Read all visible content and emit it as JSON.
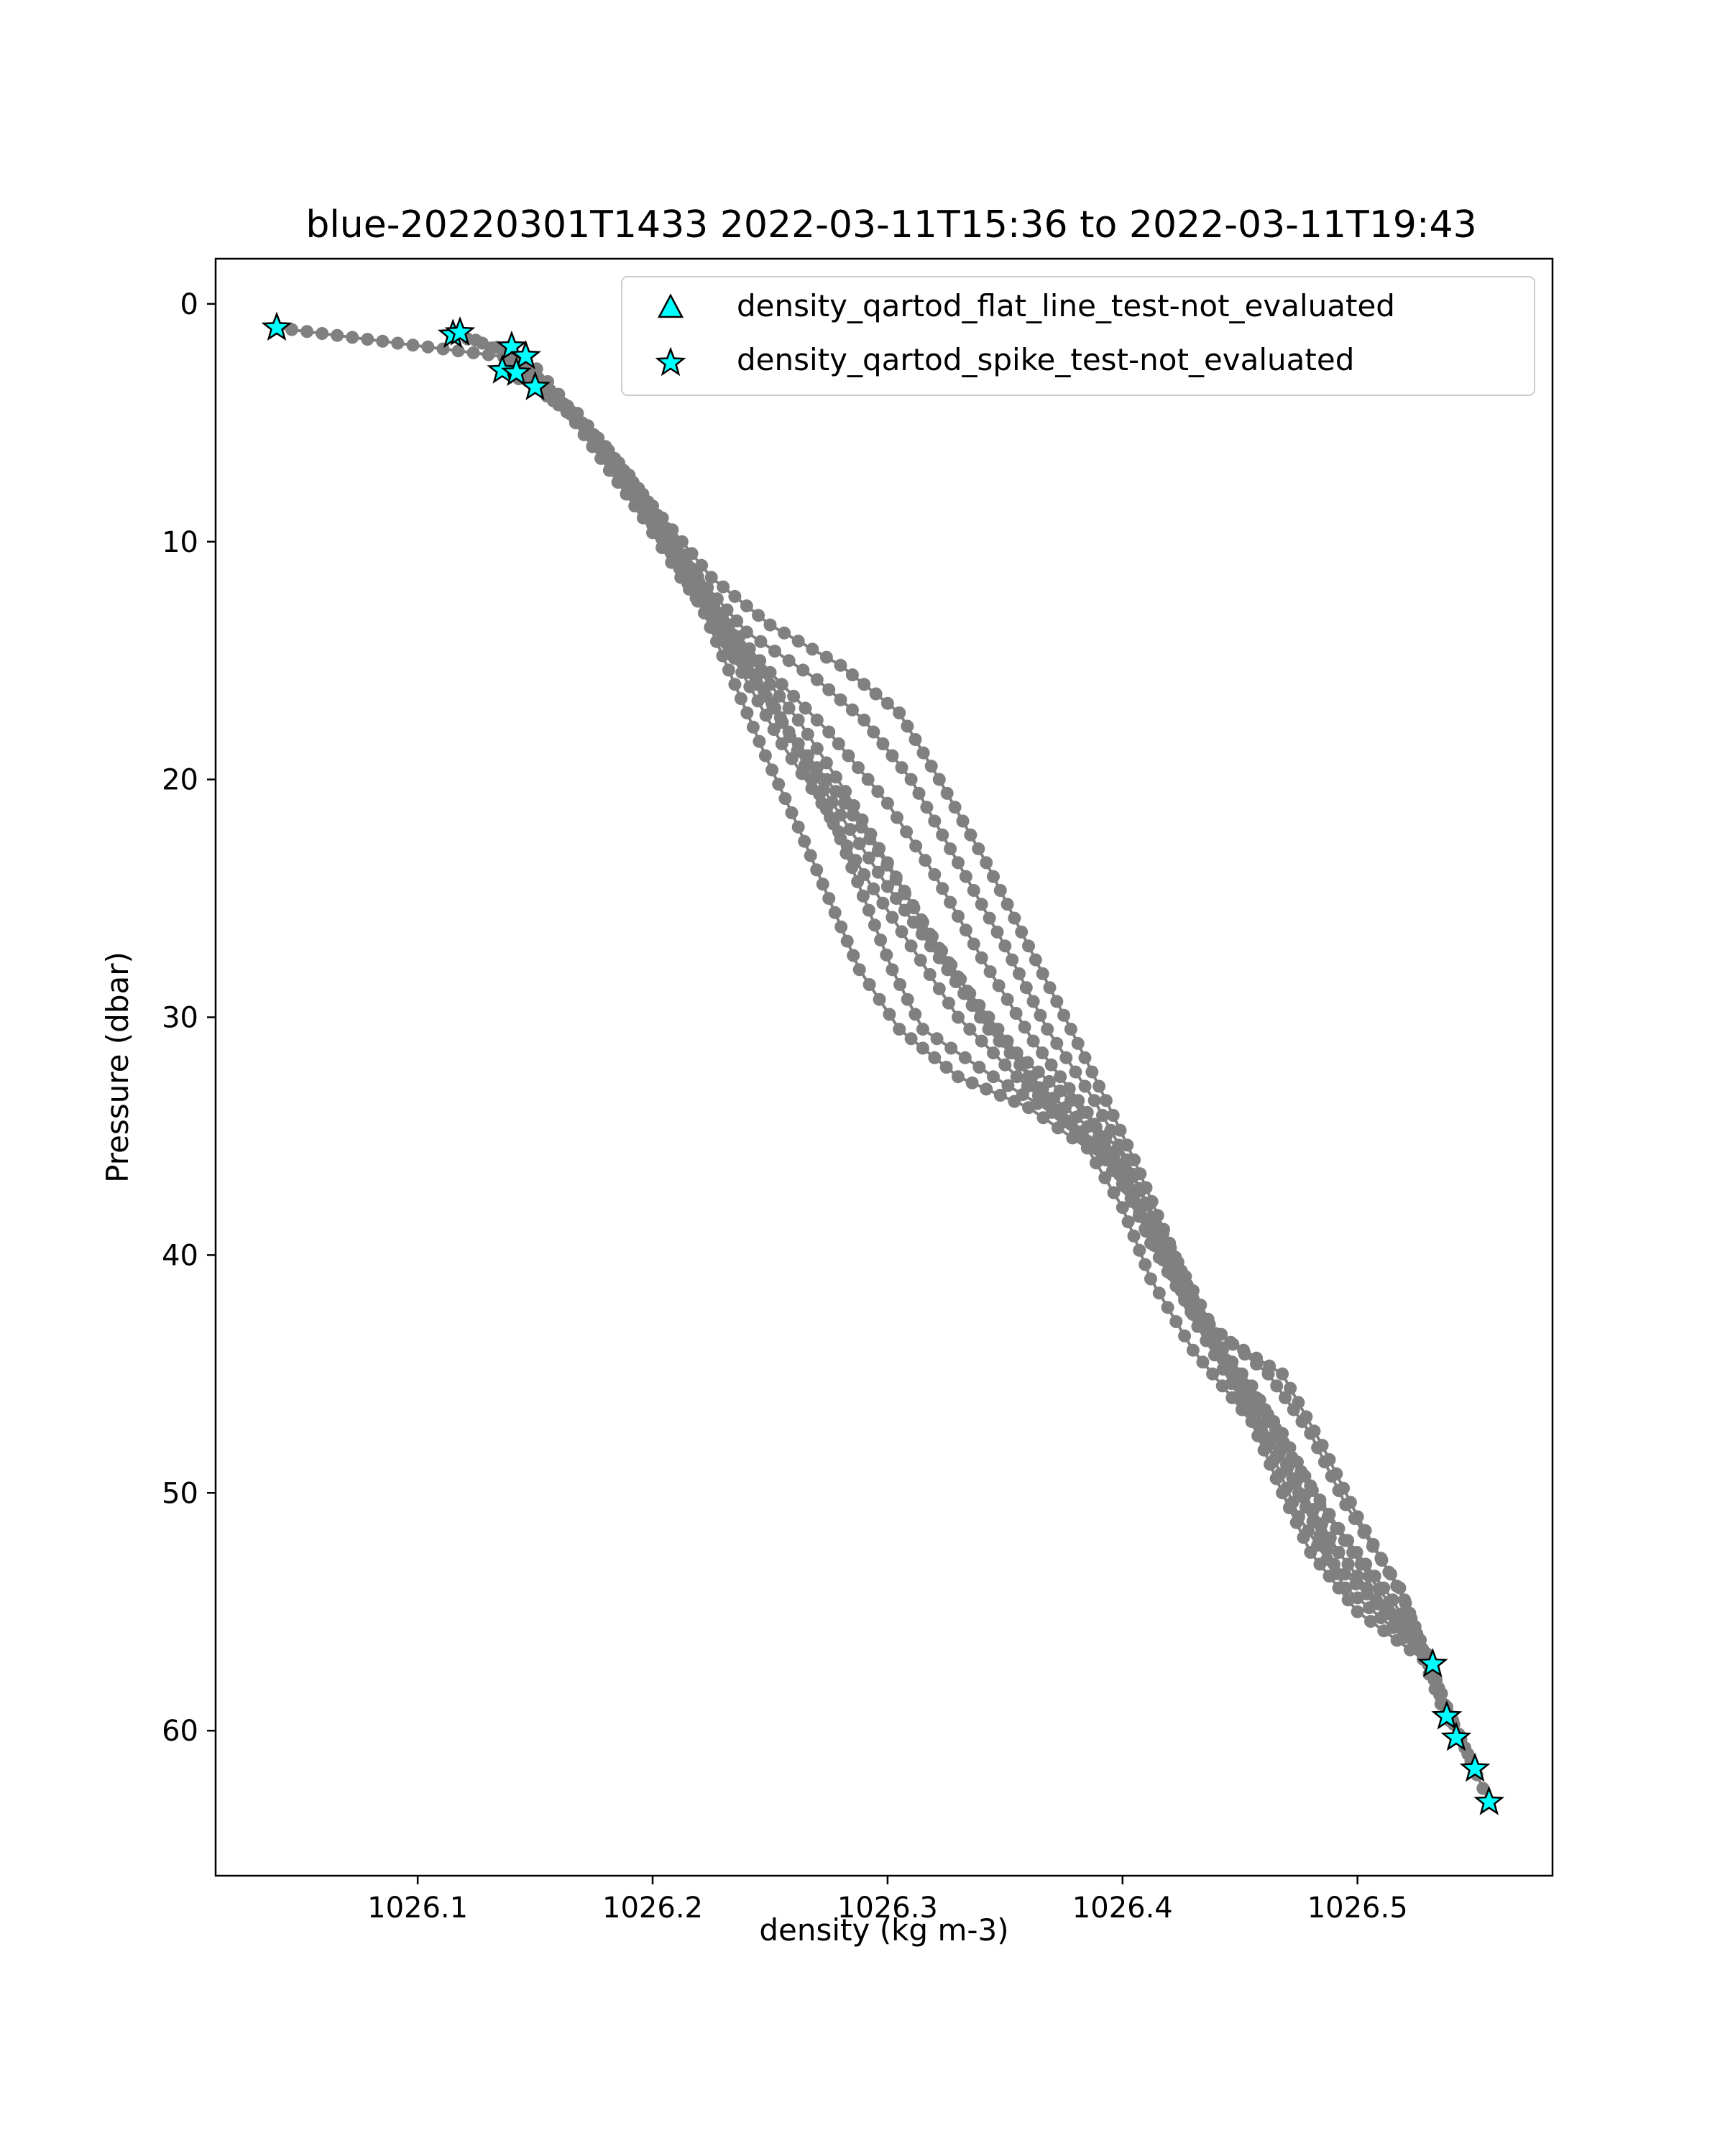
{
  "chart_data": {
    "type": "scatter",
    "title": "blue-20220301T1433 2022-03-11T15:36 to 2022-03-11T19:43",
    "xlabel": "density (kg m-3)",
    "ylabel": "Pressure (dbar)",
    "xlim": [
      1026.014,
      1026.583
    ],
    "ylim": [
      66.1,
      -1.9
    ],
    "y_inverted": true,
    "x_ticks": [
      1026.1,
      1026.2,
      1026.3,
      1026.4,
      1026.5
    ],
    "x_tick_labels": [
      "1026.1",
      "1026.2",
      "1026.3",
      "1026.4",
      "1026.5"
    ],
    "y_ticks": [
      0,
      10,
      20,
      30,
      40,
      50,
      60
    ],
    "y_tick_labels": [
      "0",
      "10",
      "20",
      "30",
      "40",
      "50",
      "60"
    ],
    "grid": false,
    "legend": {
      "placement": "upper right",
      "entries": [
        {
          "label": "density_qartod_flat_line_test-not_evaluated",
          "marker": "triangle",
          "color": "#00ffff"
        },
        {
          "label": "density_qartod_spike_test-not_evaluated",
          "marker": "star",
          "color": "#00ffff"
        }
      ]
    },
    "profile_style": {
      "line_color": "#808080",
      "marker": "circle"
    },
    "profiles": [
      {
        "points": [
          [
            1026.04,
            1.0
          ],
          [
            1026.143,
            2.3
          ],
          [
            1026.16,
            4.0
          ],
          [
            1026.178,
            6.5
          ],
          [
            1026.196,
            9.0
          ],
          [
            1026.212,
            11.5
          ],
          [
            1026.23,
            14.0
          ],
          [
            1026.252,
            17.0
          ],
          [
            1026.268,
            20.0
          ],
          [
            1026.28,
            22.5
          ],
          [
            1026.292,
            25.5
          ],
          [
            1026.302,
            28.0
          ],
          [
            1026.315,
            30.5
          ],
          [
            1026.345,
            32.5
          ],
          [
            1026.37,
            34.0
          ],
          [
            1026.395,
            36.0
          ],
          [
            1026.41,
            38.5
          ],
          [
            1026.425,
            41.5
          ],
          [
            1026.44,
            44.0
          ],
          [
            1026.462,
            47.0
          ],
          [
            1026.475,
            50.0
          ],
          [
            1026.49,
            53.0
          ],
          [
            1026.518,
            55.5
          ],
          [
            1026.532,
            57.2
          ]
        ]
      },
      {
        "points": [
          [
            1026.115,
            1.3
          ],
          [
            1026.14,
            2.0
          ],
          [
            1026.158,
            3.8
          ],
          [
            1026.18,
            6.2
          ],
          [
            1026.198,
            8.8
          ],
          [
            1026.218,
            11.5
          ],
          [
            1026.238,
            14.5
          ],
          [
            1026.262,
            17.5
          ],
          [
            1026.282,
            20.5
          ],
          [
            1026.3,
            23.5
          ],
          [
            1026.318,
            26.5
          ],
          [
            1026.338,
            29.5
          ],
          [
            1026.36,
            32.5
          ],
          [
            1026.383,
            34.8
          ],
          [
            1026.4,
            37.0
          ],
          [
            1026.418,
            40.0
          ],
          [
            1026.432,
            43.0
          ],
          [
            1026.45,
            46.0
          ],
          [
            1026.47,
            49.0
          ],
          [
            1026.488,
            52.0
          ],
          [
            1026.508,
            54.5
          ],
          [
            1026.528,
            57.0
          ],
          [
            1026.538,
            59.5
          ]
        ]
      },
      {
        "points": [
          [
            1026.118,
            1.2
          ],
          [
            1026.145,
            2.5
          ],
          [
            1026.162,
            4.2
          ],
          [
            1026.185,
            7.0
          ],
          [
            1026.205,
            10.0
          ],
          [
            1026.228,
            13.0
          ],
          [
            1026.25,
            15.5
          ],
          [
            1026.275,
            18.0
          ],
          [
            1026.3,
            21.0
          ],
          [
            1026.32,
            24.0
          ],
          [
            1026.34,
            27.5
          ],
          [
            1026.362,
            31.0
          ],
          [
            1026.385,
            34.0
          ],
          [
            1026.4,
            36.5
          ],
          [
            1026.412,
            39.5
          ],
          [
            1026.43,
            42.5
          ],
          [
            1026.455,
            45.5
          ],
          [
            1026.472,
            48.5
          ],
          [
            1026.492,
            51.5
          ],
          [
            1026.515,
            54.5
          ],
          [
            1026.532,
            57.5
          ],
          [
            1026.542,
            60.3
          ]
        ]
      },
      {
        "points": [
          [
            1026.136,
            2.8
          ],
          [
            1026.15,
            3.5
          ],
          [
            1026.17,
            5.0
          ],
          [
            1026.192,
            8.0
          ],
          [
            1026.215,
            11.0
          ],
          [
            1026.24,
            13.8
          ],
          [
            1026.27,
            15.8
          ],
          [
            1026.29,
            17.5
          ],
          [
            1026.31,
            20.0
          ],
          [
            1026.33,
            23.5
          ],
          [
            1026.35,
            27.0
          ],
          [
            1026.368,
            30.5
          ],
          [
            1026.388,
            33.5
          ],
          [
            1026.402,
            36.0
          ],
          [
            1026.415,
            39.0
          ],
          [
            1026.432,
            42.5
          ],
          [
            1026.462,
            45.0
          ],
          [
            1026.48,
            47.5
          ],
          [
            1026.495,
            50.5
          ],
          [
            1026.518,
            54.0
          ],
          [
            1026.535,
            58.5
          ],
          [
            1026.55,
            61.6
          ]
        ]
      },
      {
        "points": [
          [
            1026.142,
            2.9
          ],
          [
            1026.152,
            3.6
          ],
          [
            1026.175,
            5.5
          ],
          [
            1026.2,
            8.5
          ],
          [
            1026.225,
            11.5
          ],
          [
            1026.25,
            13.5
          ],
          [
            1026.28,
            15.2
          ],
          [
            1026.305,
            17.2
          ],
          [
            1026.322,
            20.0
          ],
          [
            1026.342,
            23.5
          ],
          [
            1026.36,
            27.0
          ],
          [
            1026.378,
            30.5
          ],
          [
            1026.393,
            33.5
          ],
          [
            1026.405,
            36.0
          ],
          [
            1026.42,
            39.5
          ],
          [
            1026.435,
            43.0
          ],
          [
            1026.468,
            45.0
          ],
          [
            1026.485,
            48.0
          ],
          [
            1026.5,
            51.0
          ],
          [
            1026.52,
            54.5
          ],
          [
            1026.538,
            59.0
          ],
          [
            1026.556,
            63.0
          ]
        ]
      },
      {
        "points": [
          [
            1026.15,
            3.5
          ],
          [
            1026.165,
            4.5
          ],
          [
            1026.188,
            7.5
          ],
          [
            1026.208,
            10.5
          ],
          [
            1026.222,
            13.0
          ],
          [
            1026.235,
            16.0
          ],
          [
            1026.248,
            19.0
          ],
          [
            1026.262,
            22.0
          ],
          [
            1026.275,
            25.0
          ],
          [
            1026.288,
            28.0
          ],
          [
            1026.305,
            30.5
          ],
          [
            1026.33,
            32.5
          ],
          [
            1026.36,
            33.8
          ],
          [
            1026.385,
            35.5
          ],
          [
            1026.4,
            38.0
          ],
          [
            1026.412,
            41.0
          ],
          [
            1026.43,
            44.0
          ],
          [
            1026.455,
            47.0
          ],
          [
            1026.468,
            50.0
          ],
          [
            1026.48,
            52.5
          ],
          [
            1026.5,
            55.0
          ],
          [
            1026.528,
            57.0
          ]
        ]
      },
      {
        "points": [
          [
            1026.146,
            2.2
          ],
          [
            1026.16,
            3.8
          ],
          [
            1026.183,
            6.8
          ],
          [
            1026.205,
            9.8
          ],
          [
            1026.222,
            12.5
          ],
          [
            1026.238,
            15.5
          ],
          [
            1026.255,
            18.5
          ],
          [
            1026.272,
            21.0
          ],
          [
            1026.29,
            24.0
          ],
          [
            1026.31,
            27.0
          ],
          [
            1026.33,
            30.0
          ],
          [
            1026.355,
            32.5
          ],
          [
            1026.378,
            34.5
          ],
          [
            1026.398,
            36.5
          ],
          [
            1026.41,
            39.0
          ],
          [
            1026.428,
            42.0
          ],
          [
            1026.448,
            45.0
          ],
          [
            1026.462,
            48.0
          ],
          [
            1026.475,
            51.0
          ],
          [
            1026.495,
            54.0
          ],
          [
            1026.525,
            56.5
          ]
        ]
      },
      {
        "points": [
          [
            1026.138,
            2.5
          ],
          [
            1026.158,
            3.9
          ],
          [
            1026.18,
            6.0
          ],
          [
            1026.203,
            9.0
          ],
          [
            1026.22,
            12.0
          ],
          [
            1026.24,
            15.0
          ],
          [
            1026.258,
            18.0
          ],
          [
            1026.278,
            20.5
          ],
          [
            1026.296,
            23.0
          ],
          [
            1026.315,
            26.0
          ],
          [
            1026.335,
            29.0
          ],
          [
            1026.355,
            31.5
          ],
          [
            1026.378,
            33.5
          ],
          [
            1026.398,
            35.5
          ],
          [
            1026.414,
            38.5
          ],
          [
            1026.43,
            41.5
          ],
          [
            1026.446,
            44.5
          ],
          [
            1026.468,
            47.5
          ],
          [
            1026.484,
            50.5
          ],
          [
            1026.505,
            53.5
          ],
          [
            1026.53,
            56.8
          ]
        ]
      },
      {
        "points": [
          [
            1026.14,
            2.7
          ],
          [
            1026.168,
            4.6
          ],
          [
            1026.19,
            7.2
          ],
          [
            1026.21,
            10.0
          ],
          [
            1026.226,
            12.8
          ],
          [
            1026.244,
            15.8
          ],
          [
            1026.262,
            18.8
          ],
          [
            1026.28,
            21.5
          ],
          [
            1026.3,
            24.5
          ],
          [
            1026.322,
            27.5
          ],
          [
            1026.343,
            30.5
          ],
          [
            1026.366,
            33.0
          ],
          [
            1026.39,
            35.0
          ],
          [
            1026.404,
            37.5
          ],
          [
            1026.422,
            40.5
          ],
          [
            1026.438,
            43.5
          ],
          [
            1026.456,
            46.5
          ],
          [
            1026.474,
            49.5
          ],
          [
            1026.492,
            52.5
          ],
          [
            1026.512,
            55.0
          ],
          [
            1026.532,
            57.4
          ]
        ]
      }
    ],
    "star_points": [
      [
        1026.04,
        1.0
      ],
      [
        1026.115,
        1.3
      ],
      [
        1026.118,
        1.2
      ],
      [
        1026.14,
        1.8
      ],
      [
        1026.146,
        2.2
      ],
      [
        1026.136,
        2.8
      ],
      [
        1026.142,
        2.9
      ],
      [
        1026.15,
        3.5
      ],
      [
        1026.532,
        57.2
      ],
      [
        1026.538,
        59.4
      ],
      [
        1026.542,
        60.3
      ],
      [
        1026.55,
        61.6
      ],
      [
        1026.556,
        63.0
      ]
    ]
  }
}
